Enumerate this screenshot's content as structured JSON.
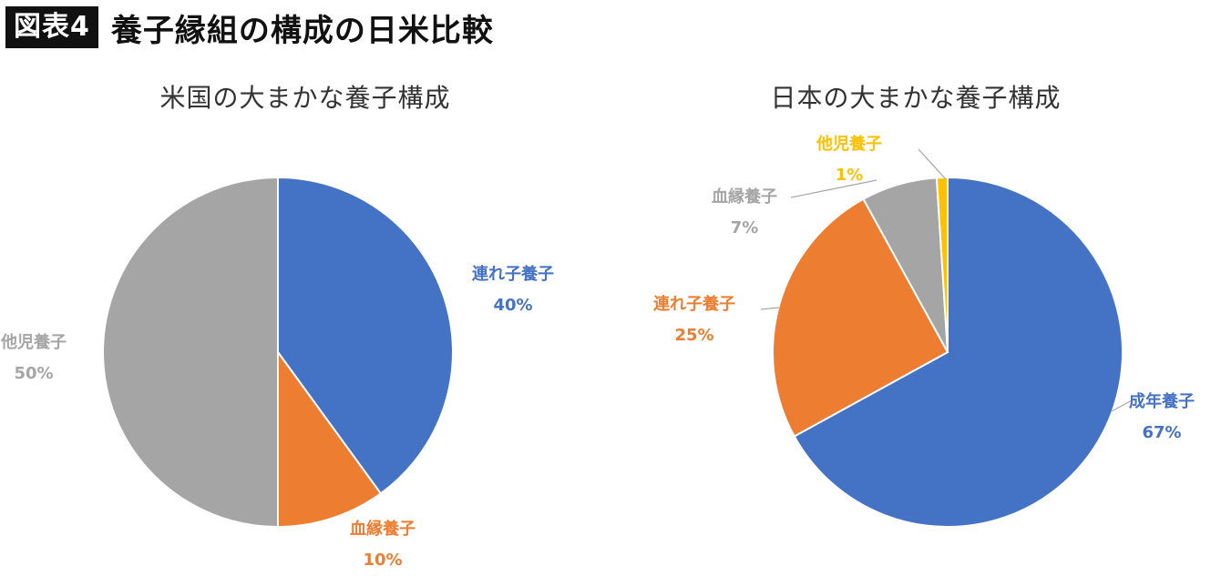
{
  "header": {
    "tag": "図表4",
    "title": "養子縁組の構成の日米比較"
  },
  "chart_data": [
    {
      "type": "pie",
      "title": "米国の大まかな養子構成",
      "slices": [
        {
          "name": "連れ子養子",
          "value": 40,
          "label": "40%",
          "color": "#4472C4"
        },
        {
          "name": "血縁養子",
          "value": 10,
          "label": "10%",
          "color": "#ED7D31"
        },
        {
          "name": "他児養子",
          "value": 50,
          "label": "50%",
          "color": "#A5A5A5"
        }
      ]
    },
    {
      "type": "pie",
      "title": "日本の大まかな養子構成",
      "slices": [
        {
          "name": "成年養子",
          "value": 67,
          "label": "67%",
          "color": "#4472C4"
        },
        {
          "name": "連れ子養子",
          "value": 25,
          "label": "25%",
          "color": "#ED7D31"
        },
        {
          "name": "血縁養子",
          "value": 7,
          "label": "7%",
          "color": "#A5A5A5"
        },
        {
          "name": "他児養子",
          "value": 1,
          "label": "1%",
          "color": "#FFC000"
        }
      ]
    }
  ]
}
